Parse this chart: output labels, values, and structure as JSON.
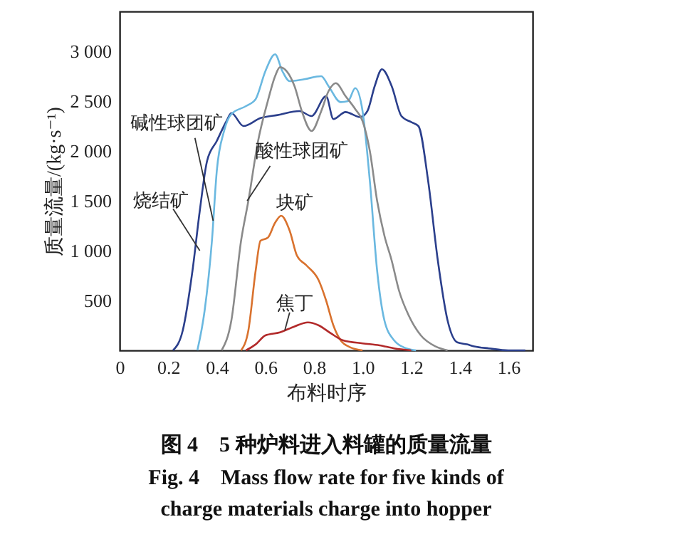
{
  "chart_data": {
    "type": "line",
    "title": "图 4　5 种炉料进入料罐的质量流量",
    "subtitle": "Fig. 4　Mass flow rate for five kinds of charge materials charge into hopper",
    "xlabel": "布料时序",
    "ylabel": "质量流量/(kg·s⁻¹)",
    "xlim": [
      0,
      1.7
    ],
    "xticks": [
      0,
      0.2,
      0.4,
      0.6,
      0.8,
      {
        "value": 1,
        "label": "1.0"
      },
      1.2,
      1.4,
      1.6
    ],
    "ylim": [
      0,
      3400
    ],
    "yticks": [
      500,
      {
        "value": 1000,
        "label": "1 000"
      },
      {
        "value": 1500,
        "label": "1 500"
      },
      {
        "value": 2000,
        "label": "2 000"
      },
      {
        "value": 2500,
        "label": "2 500"
      },
      {
        "value": 3000,
        "label": "3 000"
      }
    ],
    "grid": false,
    "legend": false,
    "marker": "none",
    "line_style": "solid",
    "annotations": [
      {
        "text": "烧结矿",
        "x": 0.33,
        "y": 1000
      },
      {
        "text": "碱性球团矿",
        "x": 0.385,
        "y": 1300
      },
      {
        "text": "酸性球团矿",
        "x": 0.525,
        "y": 1500
      },
      {
        "text": "块矿",
        "x": 0.67,
        "y": 1350
      },
      {
        "text": "焦丁",
        "x": 0.68,
        "y": 200
      }
    ],
    "series": [
      {
        "color": "#2b3f8c",
        "x": [
          0.22,
          0.26,
          0.3,
          0.33,
          0.36,
          0.4,
          0.44,
          0.46,
          0.51,
          0.58,
          0.65,
          0.74,
          0.79,
          0.85,
          0.88,
          0.93,
          0.99,
          1.02,
          1.05,
          1.08,
          1.12,
          1.16,
          1.2,
          1.23,
          1.27,
          1.31,
          1.35,
          1.39,
          1.43,
          1.46,
          1.52,
          1.6,
          1.67
        ],
        "values": [
          0,
          200,
          800,
          1400,
          1900,
          2100,
          2300,
          2380,
          2250,
          2330,
          2360,
          2400,
          2350,
          2550,
          2320,
          2390,
          2340,
          2400,
          2650,
          2820,
          2650,
          2350,
          2290,
          2250,
          1700,
          900,
          300,
          80,
          60,
          40,
          20,
          0,
          0
        ]
      },
      {
        "color": "#6ab8e0",
        "x": [
          0.32,
          0.35,
          0.38,
          0.4,
          0.43,
          0.46,
          0.52,
          0.56,
          0.6,
          0.64,
          0.67,
          0.7,
          0.76,
          0.83,
          0.86,
          0.91,
          0.94,
          0.97,
          1.0,
          1.03,
          1.06,
          1.09,
          1.13,
          1.18,
          1.22
        ],
        "values": [
          0,
          400,
          1100,
          1800,
          2200,
          2370,
          2450,
          2520,
          2800,
          2970,
          2800,
          2700,
          2720,
          2750,
          2650,
          2490,
          2500,
          2630,
          2400,
          1700,
          800,
          300,
          100,
          20,
          0
        ]
      },
      {
        "color": "#8a8a8a",
        "x": [
          0.42,
          0.46,
          0.5,
          0.53,
          0.57,
          0.61,
          0.64,
          0.66,
          0.72,
          0.75,
          0.79,
          0.83,
          0.86,
          0.89,
          0.93,
          0.97,
          1.0,
          1.03,
          1.06,
          1.09,
          1.12,
          1.15,
          1.19,
          1.24,
          1.3,
          1.35
        ],
        "values": [
          0,
          300,
          1100,
          1500,
          2100,
          2500,
          2750,
          2840,
          2650,
          2400,
          2200,
          2400,
          2600,
          2680,
          2550,
          2420,
          2300,
          2000,
          1500,
          1150,
          900,
          600,
          350,
          150,
          40,
          0
        ]
      },
      {
        "color": "#d9722e",
        "x": [
          0.5,
          0.53,
          0.56,
          0.58,
          0.61,
          0.64,
          0.665,
          0.7,
          0.73,
          0.77,
          0.82,
          0.85,
          0.88,
          0.91,
          0.95,
          1.0
        ],
        "values": [
          0,
          200,
          800,
          1100,
          1130,
          1280,
          1350,
          1200,
          950,
          850,
          700,
          500,
          250,
          100,
          30,
          0
        ]
      },
      {
        "color": "#b22a2a",
        "x": [
          0.52,
          0.56,
          0.6,
          0.66,
          0.72,
          0.775,
          0.82,
          0.87,
          0.92,
          1.0,
          1.07,
          1.13,
          1.2
        ],
        "values": [
          0,
          60,
          150,
          180,
          240,
          280,
          250,
          170,
          100,
          70,
          50,
          20,
          0
        ]
      }
    ]
  }
}
